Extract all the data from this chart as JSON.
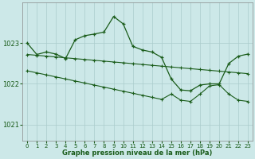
{
  "title": "Graphe pression niveau de la mer (hPa)",
  "background_color": "#cce8e8",
  "plot_bg_color": "#cce8e8",
  "grid_color": "#aacccc",
  "line_color": "#1a5c1a",
  "ylim": [
    1020.6,
    1024.0
  ],
  "yticks": [
    1021,
    1022,
    1023
  ],
  "xlim": [
    -0.5,
    23.5
  ],
  "xticks": [
    0,
    1,
    2,
    3,
    4,
    5,
    6,
    7,
    8,
    9,
    10,
    11,
    12,
    13,
    14,
    15,
    16,
    17,
    18,
    19,
    20,
    21,
    22,
    23
  ],
  "s1": [
    1023.0,
    1022.72,
    1022.78,
    1022.72,
    1022.62,
    1023.05,
    1023.18,
    1023.2,
    1023.25,
    1023.65,
    1023.45,
    1022.92,
    1022.83,
    1022.78,
    1022.6,
    1022.12,
    1021.85,
    1021.83,
    1021.97,
    1021.98,
    1022.0,
    1022.5,
    1022.7,
    1022.72
  ],
  "s2": [
    1022.72,
    1022.7,
    1022.68,
    1022.66,
    1022.64,
    1022.62,
    1022.6,
    1022.58,
    1022.56,
    1022.54,
    1022.52,
    1022.5,
    1022.48,
    1022.46,
    1022.44,
    1022.42,
    1022.4,
    1022.38,
    1022.36,
    1022.34,
    1022.32,
    1022.3,
    1022.28,
    1022.26
  ],
  "s3": [
    1022.32,
    1022.28,
    1022.24,
    1022.2,
    1022.16,
    1022.12,
    1022.08,
    1022.04,
    1022.0,
    1021.96,
    1021.92,
    1021.88,
    1021.84,
    1021.8,
    1021.76,
    1021.72,
    1021.6,
    1021.57,
    1021.75,
    1021.95,
    1021.98,
    1021.75,
    1021.6,
    1021.57
  ]
}
